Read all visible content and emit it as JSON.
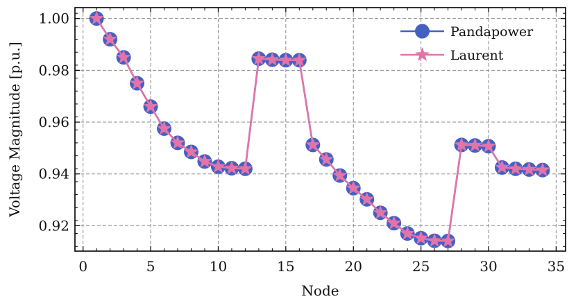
{
  "chart_data": {
    "type": "line",
    "xlabel": "Node",
    "ylabel": "Voltage Magnitude [p.u.]",
    "xlim": [
      -0.6,
      35.7
    ],
    "ylim": [
      0.9102,
      1.0042
    ],
    "x_ticks": [
      0,
      5,
      10,
      15,
      20,
      25,
      30,
      35
    ],
    "y_ticks": [
      0.92,
      0.94,
      0.96,
      0.98,
      1.0
    ],
    "x_tick_labels": [
      "0",
      "5",
      "10",
      "15",
      "20",
      "25",
      "30",
      "35"
    ],
    "y_tick_labels": [
      "0.92",
      "0.94",
      "0.96",
      "0.98",
      "1.00"
    ],
    "grid": true,
    "legend_position": "top-right",
    "x": [
      1,
      2,
      3,
      4,
      5,
      6,
      7,
      8,
      9,
      10,
      11,
      12,
      13,
      14,
      15,
      16,
      17,
      18,
      19,
      20,
      21,
      22,
      23,
      24,
      25,
      26,
      27,
      28,
      29,
      30,
      31,
      32,
      33,
      34
    ],
    "series": [
      {
        "name": "Pandapower",
        "color": "#4461c2",
        "marker": "circle",
        "values": [
          1.0,
          0.992,
          0.985,
          0.975,
          0.966,
          0.9575,
          0.952,
          0.9485,
          0.9448,
          0.9428,
          0.9422,
          0.942,
          0.9845,
          0.9841,
          0.9839,
          0.9839,
          0.9512,
          0.9456,
          0.9394,
          0.9345,
          0.9302,
          0.925,
          0.921,
          0.917,
          0.9152,
          0.9142,
          0.9141,
          0.9512,
          0.951,
          0.9507,
          0.9425,
          0.942,
          0.9417,
          0.9415
        ]
      },
      {
        "name": "Laurent",
        "color": "#e274aa",
        "marker": "star",
        "values": [
          1.0,
          0.992,
          0.985,
          0.975,
          0.966,
          0.9575,
          0.952,
          0.9485,
          0.9448,
          0.9428,
          0.9422,
          0.942,
          0.9845,
          0.9841,
          0.9839,
          0.9839,
          0.9512,
          0.9456,
          0.9394,
          0.9345,
          0.9302,
          0.925,
          0.921,
          0.917,
          0.9152,
          0.9142,
          0.9141,
          0.9512,
          0.951,
          0.9507,
          0.9425,
          0.942,
          0.9417,
          0.9415
        ]
      }
    ]
  }
}
